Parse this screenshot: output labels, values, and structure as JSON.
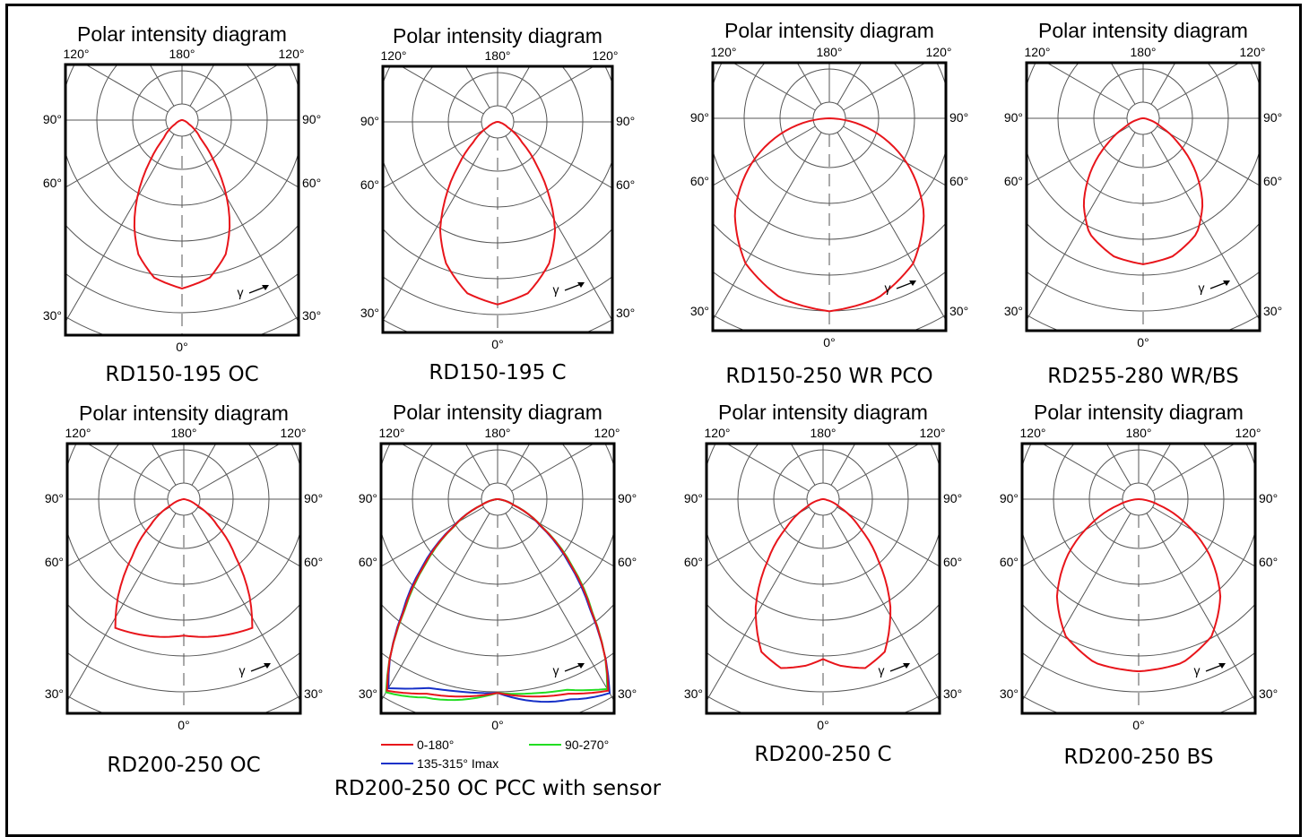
{
  "title_text": "Polar intensity diagram",
  "angle_labels": {
    "a120": "120°",
    "a180": "180°",
    "a90": "90°",
    "a60": "60°",
    "a30": "30°",
    "a0": "0°"
  },
  "gamma_symbol": "γ",
  "colors": {
    "curve_red": "#e8151b",
    "curve_green": "#22dd22",
    "curve_blue": "#1630c8",
    "grid": "#555555"
  },
  "panels": [
    {
      "caption": "RD150-195 OC",
      "shape": "narrow"
    },
    {
      "caption": "RD150-195 C",
      "shape": "narrow-medium"
    },
    {
      "caption": "RD150-250 WR PCO",
      "shape": "wide"
    },
    {
      "caption": "RD255-280 WR/BS",
      "shape": "short"
    },
    {
      "caption": "RD200-250 OC",
      "shape": "flat-bottom"
    },
    {
      "caption": "RD200-250 OC PCC with sensor",
      "shape": "multi"
    },
    {
      "caption": "RD200-250 C",
      "shape": "dip"
    },
    {
      "caption": "RD200-250 BS",
      "shape": "round"
    }
  ],
  "legend": {
    "items": [
      {
        "label": "0-180°",
        "color": "#e8151b"
      },
      {
        "label": "90-270°",
        "color": "#22dd22"
      },
      {
        "label": "135-315° Imax",
        "color": "#1630c8"
      }
    ]
  }
}
